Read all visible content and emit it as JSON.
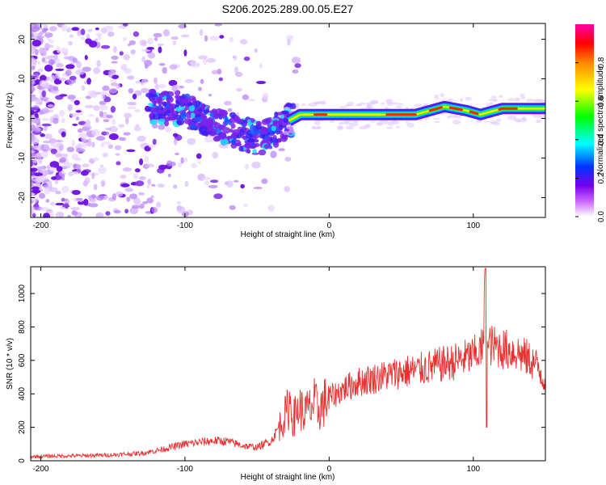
{
  "title": "S206.2025.289.00.05.E27",
  "colors": {
    "snr_line": "#e83030",
    "spectrogram_background": "#ffffff",
    "axis": "#000000"
  },
  "chart_data": [
    {
      "type": "heatmap",
      "name": "spectrogram",
      "xlabel": "Height of straight line (km)",
      "ylabel": "Frequency (Hz)",
      "xlim": [
        -207,
        150
      ],
      "ylim": [
        -25,
        24
      ],
      "xticks": [
        -200,
        -100,
        0,
        100
      ],
      "yticks": [
        -20,
        -10,
        0,
        10,
        20
      ],
      "colorbar": {
        "label": "Normalized spectral amplitude",
        "range": [
          0,
          1
        ],
        "ticks": [
          "0.0",
          "0.2",
          "0.4",
          "0.6",
          "0.8"
        ],
        "tick_values": [
          0.0,
          0.2,
          0.4,
          0.6,
          0.8
        ],
        "colormap": [
          "#ffffff",
          "#cc66ff",
          "#7700ee",
          "#0033ff",
          "#00ffff",
          "#00ff00",
          "#ffff00",
          "#ff8800",
          "#ff0000",
          "#ff00aa"
        ]
      },
      "ridge": {
        "description_points": [
          [
            -120,
            3
          ],
          [
            -100,
            2
          ],
          [
            -80,
            -1
          ],
          [
            -60,
            -4
          ],
          [
            -45,
            -5
          ],
          [
            -30,
            -1
          ],
          [
            -20,
            1
          ],
          [
            0,
            1
          ],
          [
            40,
            1
          ],
          [
            60,
            1
          ],
          [
            80,
            3
          ],
          [
            95,
            2
          ],
          [
            105,
            1
          ],
          [
            120,
            2.5
          ],
          [
            150,
            2.5
          ]
        ],
        "note": "coherent narrowband signal near 0-3 Hz from about -25 km to 150 km; scattered noise below -20 km"
      }
    },
    {
      "type": "line",
      "name": "snr",
      "xlabel": "Height of straight line (km)",
      "ylabel": "SNR (10 * v/v)",
      "xlim": [
        -207,
        150
      ],
      "ylim": [
        0,
        1160
      ],
      "xticks": [
        -200,
        -100,
        0,
        100
      ],
      "yticks": [
        0,
        200,
        400,
        600,
        800,
        1000
      ],
      "series": [
        {
          "name": "SNR",
          "x": [
            -207,
            -190,
            -170,
            -150,
            -130,
            -120,
            -110,
            -100,
            -90,
            -80,
            -70,
            -60,
            -50,
            -40,
            -35,
            -30,
            -27,
            -25,
            -22,
            -20,
            -18,
            -15,
            -12,
            -10,
            -8,
            -5,
            -2,
            0,
            5,
            10,
            15,
            20,
            30,
            40,
            50,
            60,
            70,
            80,
            90,
            100,
            105,
            107,
            108,
            109,
            110,
            112,
            120,
            130,
            140,
            145,
            150
          ],
          "y": [
            25,
            28,
            30,
            35,
            45,
            60,
            80,
            100,
            110,
            120,
            115,
            90,
            80,
            120,
            200,
            280,
            350,
            250,
            300,
            320,
            280,
            300,
            320,
            350,
            300,
            330,
            360,
            380,
            400,
            430,
            450,
            470,
            490,
            510,
            530,
            540,
            560,
            580,
            600,
            630,
            660,
            680,
            1000,
            550,
            680,
            690,
            670,
            650,
            600,
            560,
            470
          ]
        }
      ]
    }
  ]
}
